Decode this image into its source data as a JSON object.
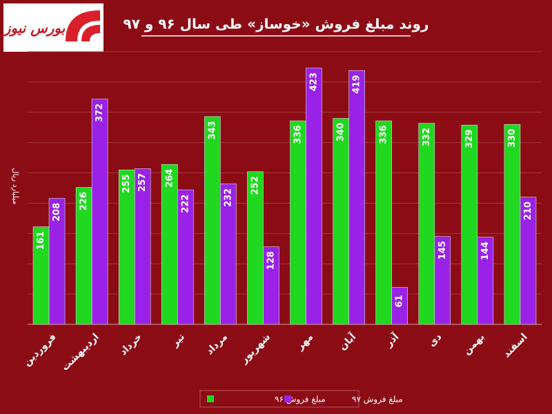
{
  "logo": {
    "text": "بورس نیوز"
  },
  "chart_data": {
    "type": "bar",
    "title": "روند مبلغ فروش «خوساز» طی سال ۹۶ و ۹۷",
    "y_label": "میلیارد ریال",
    "categories": [
      "فروردین",
      "اردیبهشت",
      "خرداد",
      "تیر",
      "مرداد",
      "شهریور",
      "مهر",
      "آبان",
      "آذر",
      "دی",
      "بهمن",
      "اسفند"
    ],
    "series": [
      {
        "name": "مبلغ فروش ۹۶",
        "color": "#1fd81f",
        "values": [
          161,
          226,
          255,
          264,
          343,
          252,
          336,
          340,
          336,
          332,
          329,
          330
        ]
      },
      {
        "name": "مبلغ فروش ۹۷",
        "color": "#9a22e6",
        "values": [
          208,
          372,
          257,
          222,
          232,
          128,
          423,
          419,
          61,
          145,
          144,
          210
        ]
      }
    ],
    "ylim": [
      0,
      450
    ],
    "yticks": [
      0,
      50,
      100,
      150,
      200,
      250,
      300,
      350,
      400,
      450
    ],
    "ytick_labels": false,
    "grid": true,
    "legend": "bottom"
  }
}
